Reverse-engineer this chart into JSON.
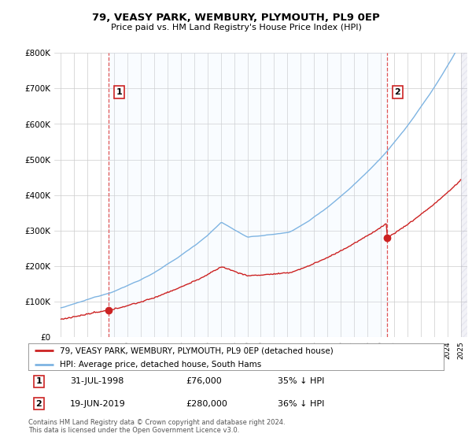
{
  "title": "79, VEASY PARK, WEMBURY, PLYMOUTH, PL9 0EP",
  "subtitle": "Price paid vs. HM Land Registry's House Price Index (HPI)",
  "ylim": [
    0,
    800000
  ],
  "yticks": [
    0,
    100000,
    200000,
    300000,
    400000,
    500000,
    600000,
    700000,
    800000
  ],
  "ytick_labels": [
    "£0",
    "£100K",
    "£200K",
    "£300K",
    "£400K",
    "£500K",
    "£600K",
    "£700K",
    "£800K"
  ],
  "hpi_color": "#7eb4e2",
  "price_color": "#cc2222",
  "vline_color": "#e05555",
  "bg_color": "#ffffff",
  "fill_color": "#ddeeff",
  "grid_color": "#cccccc",
  "legend_label_price": "79, VEASY PARK, WEMBURY, PLYMOUTH, PL9 0EP (detached house)",
  "legend_label_hpi": "HPI: Average price, detached house, South Hams",
  "annotation1_label": "1",
  "annotation1_date": "31-JUL-1998",
  "annotation1_price": "£76,000",
  "annotation1_pct": "35% ↓ HPI",
  "annotation2_label": "2",
  "annotation2_date": "19-JUN-2019",
  "annotation2_price": "£280,000",
  "annotation2_pct": "36% ↓ HPI",
  "footnote": "Contains HM Land Registry data © Crown copyright and database right 2024.\nThis data is licensed under the Open Government Licence v3.0.",
  "sale1_year": 1998.58,
  "sale1_price": 76000,
  "sale2_year": 2019.47,
  "sale2_price": 280000,
  "xmin": 1995,
  "xmax": 2025
}
